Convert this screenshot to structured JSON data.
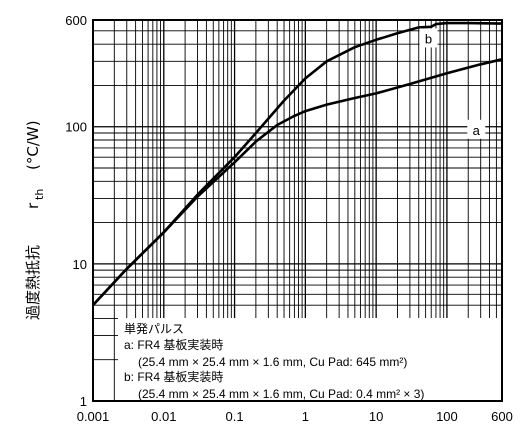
{
  "chart_data": {
    "type": "line",
    "x_scale": "log",
    "y_scale": "log",
    "xlim": [
      0.001,
      600
    ],
    "ylim": [
      1,
      600
    ],
    "grid": true,
    "x_ticks": [
      "0.001",
      "0.01",
      "0.1",
      "1",
      "10",
      "100",
      "600"
    ],
    "y_ticks": [
      "1",
      "10",
      "100",
      "600"
    ],
    "ylabel": {
      "quantity": "過度熱抵抗",
      "symbol": "r",
      "subscript": "th",
      "unit": "(°C/W)"
    },
    "series": [
      {
        "name": "a",
        "x": [
          0.001,
          0.003,
          0.01,
          0.03,
          0.1,
          0.2,
          0.4,
          0.7,
          1,
          2,
          5,
          10,
          30,
          100,
          300,
          600
        ],
        "y": [
          5,
          9.2,
          17,
          31,
          55,
          78,
          103,
          120,
          130,
          145,
          162,
          175,
          205,
          245,
          285,
          310
        ]
      },
      {
        "name": "b",
        "x": [
          0.001,
          0.003,
          0.01,
          0.03,
          0.1,
          0.2,
          0.5,
          1,
          2,
          5,
          10,
          20,
          40,
          60,
          70,
          100,
          200,
          600
        ],
        "y": [
          5,
          9.2,
          17,
          32,
          60,
          90,
          155,
          225,
          300,
          380,
          430,
          480,
          530,
          535,
          560,
          570,
          570,
          565
        ]
      }
    ],
    "annotations": {
      "series_labels": [
        "a",
        "b"
      ],
      "notes": [
        "単発パルス",
        "a: FR4  基板実装時",
        "(25.4 mm × 25.4 mm × 1.6 mm, Cu Pad: 645 mm²)",
        "b: FR4  基板実装時",
        "(25.4 mm × 25.4 mm × 1.6 mm, Cu Pad: 0.4 mm² × 3)"
      ]
    },
    "colors": {
      "line": "#000000",
      "grid": "#000000",
      "background": "#ffffff"
    }
  }
}
